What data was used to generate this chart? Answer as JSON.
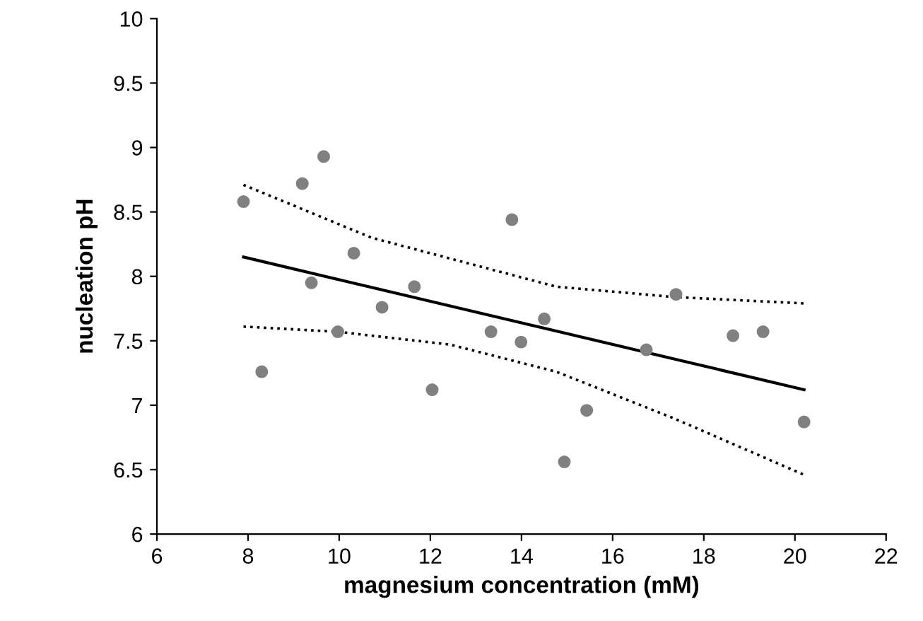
{
  "chart_data": {
    "type": "scatter",
    "xlabel": "magnesium concentration (mM)",
    "ylabel": "nucleation pH",
    "xlim": [
      6,
      22
    ],
    "xticks": [
      6,
      8,
      10,
      12,
      14,
      16,
      18,
      20,
      22
    ],
    "ylim": [
      6,
      10
    ],
    "yticks": [
      6,
      6.5,
      7,
      7.5,
      8,
      8.5,
      9,
      9.5,
      10
    ],
    "grid": false,
    "legend": false,
    "marker": "circle",
    "series": [
      {
        "color": "#808080",
        "x": [
          7.9,
          9.19,
          9.66,
          8.3,
          10.32,
          9.39,
          10.94,
          11.65,
          9.97,
          12.04,
          13.79,
          13.33,
          13.99,
          14.5,
          17.39,
          18.64,
          19.3,
          16.74,
          15.43,
          14.94,
          20.2
        ],
        "values": [
          8.58,
          8.72,
          8.93,
          7.26,
          8.18,
          7.95,
          7.76,
          7.92,
          7.57,
          7.12,
          8.44,
          7.57,
          7.49,
          7.67,
          7.86,
          7.54,
          7.57,
          7.43,
          6.96,
          6.56,
          6.87
        ]
      },
      {
        "type": "line",
        "color": "#000000",
        "line_style": "solid",
        "marker": "none",
        "x": [
          7.9,
          20.2
        ],
        "values": [
          8.15,
          7.12
        ]
      },
      {
        "type": "line",
        "color": "#000000",
        "line_style": "dotted",
        "marker": "none",
        "x": [
          7.9,
          10.71,
          14.76,
          17.33,
          20.2
        ],
        "values": [
          8.71,
          8.3,
          7.92,
          7.84,
          7.79
        ]
      },
      {
        "type": "line",
        "color": "#000000",
        "line_style": "dotted",
        "marker": "none",
        "x": [
          7.9,
          9.97,
          12.44,
          14.76,
          17.33,
          20.2
        ],
        "values": [
          7.61,
          7.57,
          7.47,
          7.26,
          6.9,
          6.46
        ]
      }
    ]
  }
}
